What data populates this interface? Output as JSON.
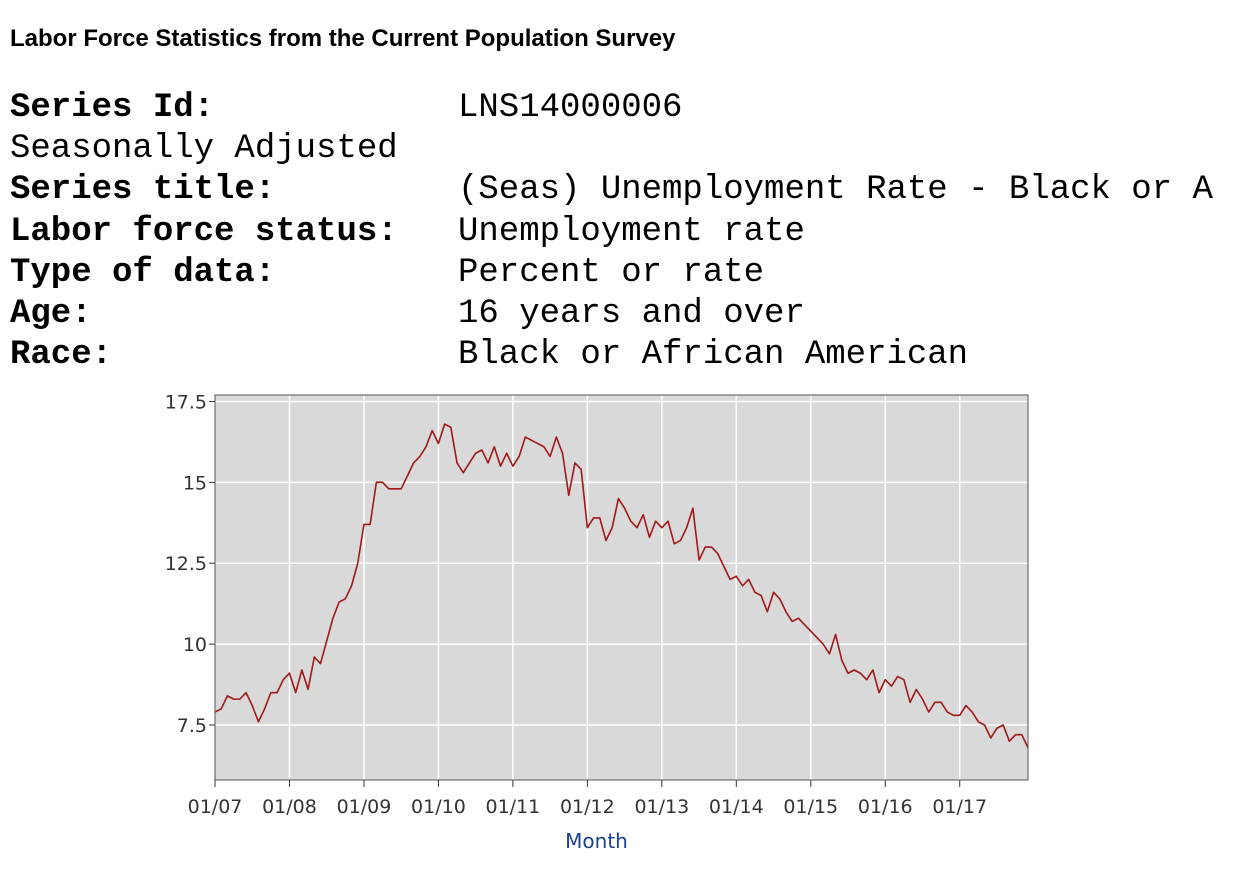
{
  "page": {
    "title": "Labor Force Statistics from the Current Population Survey"
  },
  "series_info": [
    {
      "label": "Series Id:",
      "value": "LNS14000006",
      "bold": true
    },
    {
      "label": "Seasonally Adjusted",
      "value": "",
      "bold": false
    },
    {
      "label": "Series title:",
      "value": "(Seas) Unemployment Rate - Black or A",
      "bold": true
    },
    {
      "label": "Labor force status:",
      "value": "Unemployment rate",
      "bold": true
    },
    {
      "label": "Type of data:",
      "value": "Percent or rate",
      "bold": true
    },
    {
      "label": "Age:",
      "value": "16 years and over",
      "bold": true
    },
    {
      "label": "Race:",
      "value": "Black or African American",
      "bold": true
    }
  ],
  "chart_data": {
    "type": "line",
    "xlabel": "Month",
    "ylabel": "",
    "title": "",
    "ylim": [
      5.8,
      17.7
    ],
    "xlim": [
      "2007-01",
      "2017-12"
    ],
    "y_ticks": [
      7.5,
      10,
      12.5,
      15,
      17.5
    ],
    "y_tick_labels": [
      "7.5",
      "10",
      "12.5",
      "15",
      "17.5"
    ],
    "x_ticks": [
      "2007-01",
      "2008-01",
      "2009-01",
      "2010-01",
      "2011-01",
      "2012-01",
      "2013-01",
      "2014-01",
      "2015-01",
      "2016-01",
      "2017-01"
    ],
    "x_tick_labels": [
      "01/07",
      "01/08",
      "01/09",
      "01/10",
      "01/11",
      "01/12",
      "01/13",
      "01/14",
      "01/15",
      "01/16",
      "01/17"
    ],
    "grid": true,
    "colors": {
      "line": "#a01818",
      "plot_bg": "#d9d9d9",
      "grid": "#ffffff",
      "xlabel": "#1f3f8f"
    },
    "series": [
      {
        "x_start": "2007-01",
        "frequency": "monthly",
        "values": [
          7.9,
          8.0,
          8.4,
          8.3,
          8.3,
          8.5,
          8.1,
          7.6,
          8.0,
          8.5,
          8.5,
          8.9,
          9.1,
          8.5,
          9.2,
          8.6,
          9.6,
          9.4,
          10.1,
          10.8,
          11.3,
          11.4,
          11.8,
          12.5,
          13.7,
          13.7,
          15.0,
          15.0,
          14.8,
          14.8,
          14.8,
          15.2,
          15.6,
          15.8,
          16.1,
          16.6,
          16.2,
          16.8,
          16.7,
          15.6,
          15.3,
          15.6,
          15.9,
          16.0,
          15.6,
          16.1,
          15.5,
          15.9,
          15.5,
          15.8,
          16.4,
          16.3,
          16.2,
          16.1,
          15.8,
          16.4,
          15.9,
          14.6,
          15.6,
          15.4,
          13.6,
          13.9,
          13.9,
          13.2,
          13.6,
          14.5,
          14.2,
          13.8,
          13.6,
          14.0,
          13.3,
          13.8,
          13.6,
          13.8,
          13.1,
          13.2,
          13.6,
          14.2,
          12.6,
          13.0,
          13.0,
          12.8,
          12.4,
          12.0,
          12.1,
          11.8,
          12.0,
          11.6,
          11.5,
          11.0,
          11.6,
          11.4,
          11.0,
          10.7,
          10.8,
          10.6,
          10.4,
          10.2,
          10.0,
          9.7,
          10.3,
          9.5,
          9.1,
          9.2,
          9.1,
          8.9,
          9.2,
          8.5,
          8.9,
          8.7,
          9.0,
          8.9,
          8.2,
          8.6,
          8.3,
          7.9,
          8.2,
          8.2,
          7.9,
          7.8,
          7.8,
          8.1,
          7.9,
          7.6,
          7.5,
          7.1,
          7.4,
          7.5,
          7.0,
          7.2,
          7.2,
          6.8
        ]
      }
    ]
  }
}
